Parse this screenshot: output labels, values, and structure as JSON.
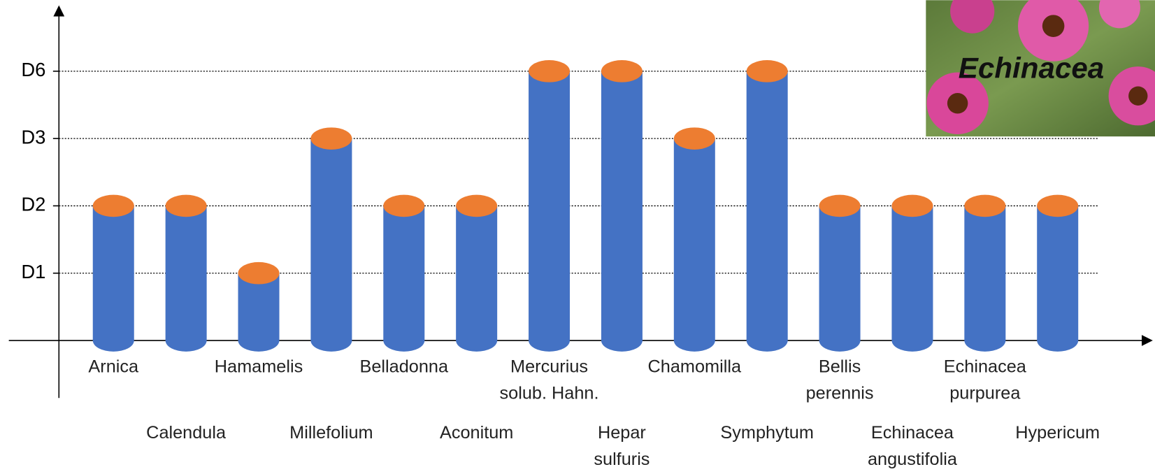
{
  "chart_data": {
    "type": "cylinder-bar",
    "categories": [
      "Arnica",
      "Calendula",
      "Hamamelis",
      "Millefolium",
      "Belladonna",
      "Aconitum",
      "Mercurius\nsolub. Hahn.",
      "Hepar\nsulfuris",
      "Chamomilla",
      "Symphytum",
      "Bellis\nperennis",
      "Echinacea\nangustifolia",
      "Echinacea\npurpurea",
      "Hypericum"
    ],
    "values": [
      2,
      2,
      1,
      3,
      2,
      2,
      4,
      4,
      3,
      4,
      2,
      2,
      2,
      2
    ],
    "color": "#4472c4",
    "top_color": "#ed7d31",
    "ylim": [
      0,
      5
    ],
    "yticks": [
      {
        "value": 1,
        "label": "D1"
      },
      {
        "value": 2,
        "label": "D2"
      },
      {
        "value": 3,
        "label": "D3"
      },
      {
        "value": 4,
        "label": "D6"
      }
    ],
    "grid": true,
    "image_label": "Echinacea"
  }
}
